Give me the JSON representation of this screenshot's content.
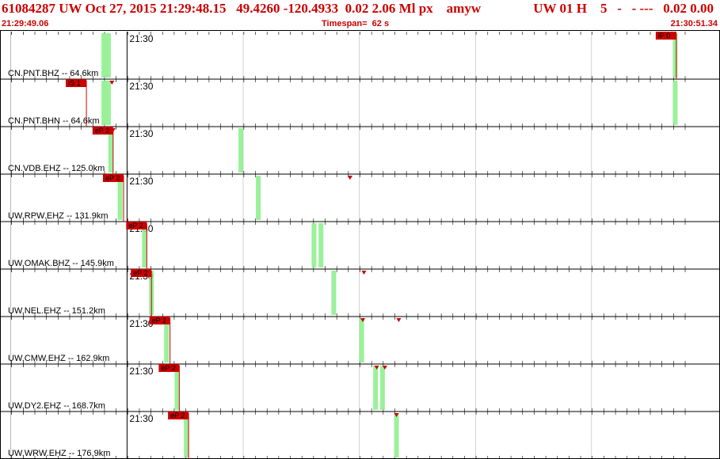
{
  "header": {
    "event_id": "61084287",
    "network": "UW",
    "datetime": "Oct 27, 2015 21:29:48.15",
    "lat": "49.4260",
    "lon": "-120.4933",
    "depth": "0.02",
    "magnitude": "2.06",
    "mag_type": "Ml",
    "type": "px",
    "source": "amyw",
    "right_block": "UW 01 H    5   -   - ---   0.02 0.00",
    "start_time": "21:29:49.06",
    "timespan_label": "Timespan=  62 s",
    "end_time": "21:30:51.34"
  },
  "chart_data": {
    "type": "line",
    "title": "",
    "time_start": "21:29:49.06",
    "time_end": "21:30:51.34",
    "timespan_s": 62,
    "grid": true,
    "colors": {
      "trace_blue": "#0000ff",
      "trace_navy": "#1a1a6e",
      "pick": "#cc0000",
      "marker": "#88ee88"
    },
    "traces": [
      {
        "tick_label": "21:30",
        "label": "CN.PNT.BHZ -- 64.6km",
        "distance_km": 64.6,
        "pick": {
          "text": "iP 0",
          "time": 47.3
        },
        "green_marks": [
          47.2,
          58.0,
          58.4
        ],
        "red_triangles": [],
        "trace_start": 0,
        "trace_end": 52.2,
        "onset": 47.4,
        "amp": 1.0,
        "color": "#1a1a6e",
        "style": "broadband",
        "seed": 11
      },
      {
        "tick_label": "21:30",
        "label": "CN.PNT.BHN -- 64.6km",
        "distance_km": 64.6,
        "pick": {
          "text": "iS 1",
          "time": 56.5
        },
        "green_marks": [
          47.2,
          58.0,
          58.4
        ],
        "red_triangles": [
          58.7
        ],
        "trace_start": 0,
        "trace_end": 52.2,
        "onset": 56.5,
        "amp": 0.9,
        "color": "#1a1a6e",
        "style": "broadband",
        "seed": 23
      },
      {
        "tick_label": "21:30",
        "label": "CN.VDB.EHZ -- 125.0km",
        "distance_km": 125.0,
        "pick": {
          "text": "eP 2",
          "time": 58.8
        },
        "green_marks": [
          58.6,
          9.8
        ],
        "red_triangles": [
          58.8
        ],
        "trace_start": 44.0,
        "trace_end": 50.3,
        "onset": 58.9,
        "amp": 0.9,
        "color": "#0000ff",
        "style": "short",
        "seed": 37
      },
      {
        "tick_label": "21:30",
        "label": "UW.RPW.EHZ -- 131.9km",
        "distance_km": 131.9,
        "pick": {
          "text": "eP 2",
          "time": 59.7
        },
        "green_marks": [
          59.4,
          11.3
        ],
        "red_triangles": [
          19.2,
          19.2
        ],
        "trace_start": 45.0,
        "trace_end": 51.0,
        "onset": 59.8,
        "amp": 1.0,
        "color": "#0000ff",
        "style": "short",
        "seed": 41
      },
      {
        "tick_label": "21:30",
        "label": "UW.OMAK.BHZ -- 145.9km",
        "distance_km": 145.9,
        "pick": {
          "text": "eP 2",
          "time": 61.7
        },
        "green_marks": [
          61.5,
          16.1,
          16.7
        ],
        "red_triangles": [],
        "trace_start": 46.5,
        "trace_end": 52.4,
        "onset": 61.7,
        "amp": 0.9,
        "color": "#1a1a6e",
        "style": "broadband_low",
        "seed": 53
      },
      {
        "tick_label": "21:30",
        "label": "UW.NEL.EHZ -- 151.2km",
        "distance_km": 151.2,
        "pick": {
          "text": "eP 2",
          "time": 62.1
        },
        "green_marks": [
          62.1,
          17.8
        ],
        "red_triangles": [
          20.4
        ],
        "trace_start": 46.8,
        "trace_end": 52.5,
        "onset": 62.2,
        "amp": 1.0,
        "color": "#0000ff",
        "style": "short",
        "seed": 67
      },
      {
        "tick_label": "21:30",
        "label": "UW.CMW.EHZ -- 162.9km",
        "distance_km": 162.9,
        "pick": {
          "text": "eP 2",
          "time": 3.7
        },
        "green_marks": [
          3.4,
          20.2
        ],
        "red_triangles": [
          20.3,
          23.4
        ],
        "trace_start": 47.8,
        "trace_end": 52.8,
        "onset": 3.8,
        "amp": 1.0,
        "color": "#0000ff",
        "style": "short",
        "seed": 79
      },
      {
        "tick_label": "21:30",
        "label": "UW.DY2.EHZ -- 168.7km",
        "distance_km": 168.7,
        "pick": {
          "text": "eP 2",
          "time": 4.5
        },
        "green_marks": [
          4.3,
          21.4,
          22.0
        ],
        "red_triangles": [
          21.5,
          22.2
        ],
        "trace_start": 48.0,
        "trace_end": 52.8,
        "onset": 4.6,
        "amp": 0.9,
        "color": "#0000ff",
        "style": "short",
        "seed": 83
      },
      {
        "tick_label": "21:30",
        "label": "UW.WRW.EHZ -- 176.9km",
        "distance_km": 176.9,
        "pick": {
          "text": "eP 2",
          "time": 5.3
        },
        "green_marks": [
          5.1,
          23.2
        ],
        "red_triangles": [
          23.2
        ],
        "trace_start": 48.3,
        "trace_end": 52.8,
        "onset": 5.4,
        "amp": 0.9,
        "color": "#0000ff",
        "style": "short",
        "seed": 97
      }
    ]
  }
}
